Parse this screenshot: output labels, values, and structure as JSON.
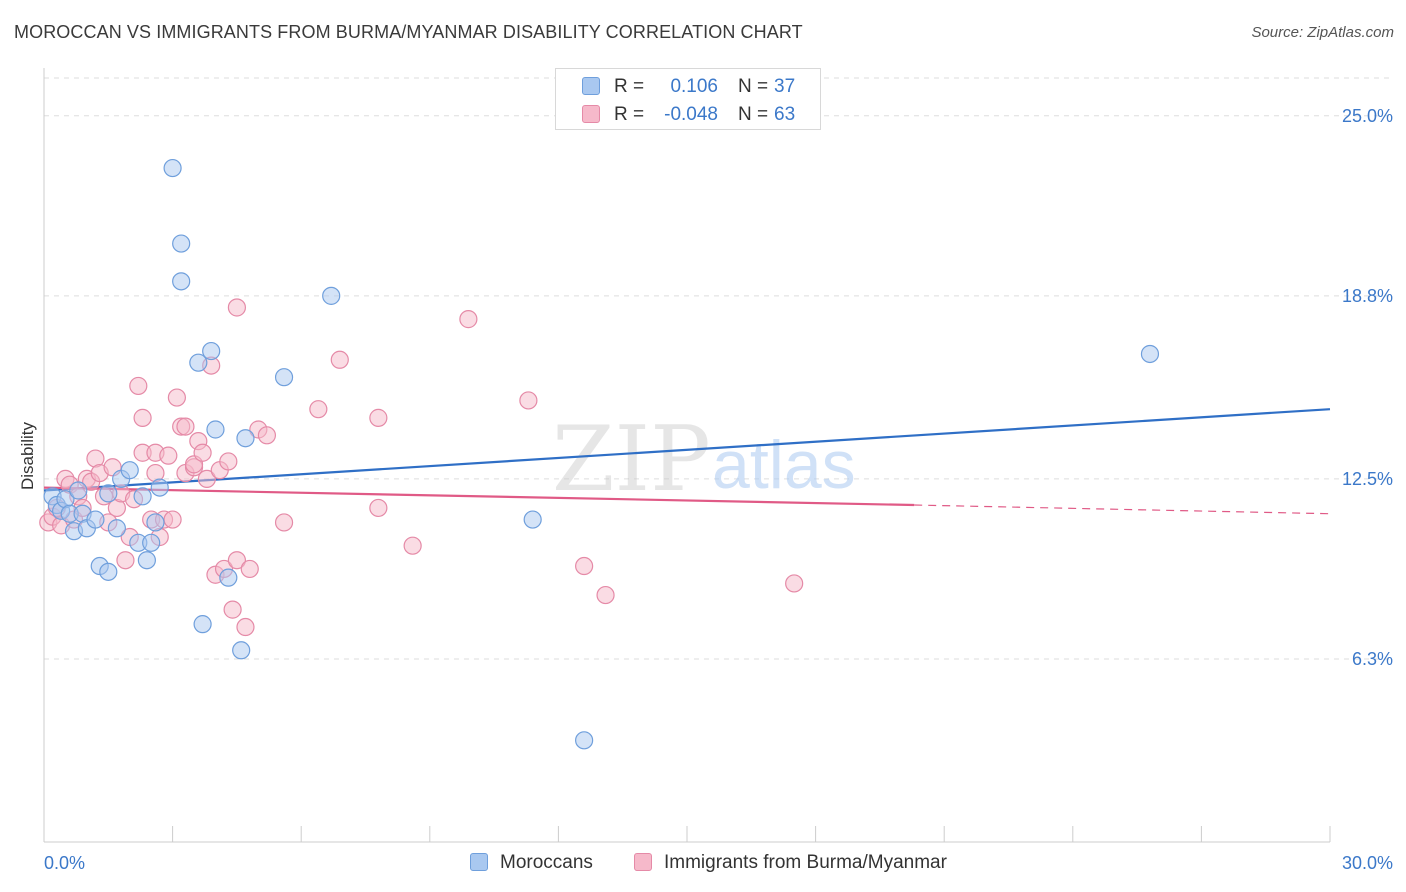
{
  "title": "MOROCCAN VS IMMIGRANTS FROM BURMA/MYANMAR DISABILITY CORRELATION CHART",
  "source": "Source: ZipAtlas.com",
  "colors": {
    "blue_fill": "#a9c8f0",
    "blue_stroke": "#6f9fdc",
    "blue_line": "#2f6fc6",
    "pink_fill": "#f6b9ca",
    "pink_stroke": "#e58aa7",
    "pink_line": "#e05a86",
    "axis_text": "#3b78c9",
    "grid": "#dddddd",
    "watermark": "#c8c8c8"
  },
  "legend_top": {
    "rows": [
      {
        "series": "Moroccans",
        "r_label": "R =",
        "r_value": "0.106",
        "n_label": "N =",
        "n_value": "37"
      },
      {
        "series": "Immigrants from Burma/Myanmar",
        "r_label": "R =",
        "r_value": "-0.048",
        "n_label": "N =",
        "n_value": "63"
      }
    ]
  },
  "legend_bottom": [
    "Moroccans",
    "Immigrants from Burma/Myanmar"
  ],
  "watermark": {
    "zip": "ZIP",
    "atlas": "atlas"
  },
  "chart_data": {
    "type": "scatter",
    "title": "MOROCCAN VS IMMIGRANTS FROM BURMA/MYANMAR DISABILITY CORRELATION CHART",
    "xlabel": "",
    "ylabel": "Disability",
    "xlim": [
      0,
      30
    ],
    "ylim": [
      0,
      26.3
    ],
    "x_tick_labels": [
      {
        "value": 0,
        "label": "0.0%"
      },
      {
        "value": 30,
        "label": "30.0%"
      }
    ],
    "y_tick_labels": [
      {
        "value": 6.3,
        "label": "6.3%"
      },
      {
        "value": 12.5,
        "label": "12.5%"
      },
      {
        "value": 18.8,
        "label": "18.8%"
      },
      {
        "value": 25.0,
        "label": "25.0%"
      }
    ],
    "grid": true,
    "series": [
      {
        "name": "Moroccans",
        "points": [
          [
            0.2,
            11.9
          ],
          [
            0.3,
            11.6
          ],
          [
            0.4,
            11.4
          ],
          [
            0.5,
            11.8
          ],
          [
            0.6,
            11.3
          ],
          [
            0.8,
            12.1
          ],
          [
            0.7,
            10.7
          ],
          [
            0.9,
            11.3
          ],
          [
            1.0,
            10.8
          ],
          [
            1.2,
            11.1
          ],
          [
            1.5,
            12.0
          ],
          [
            1.3,
            9.5
          ],
          [
            1.5,
            9.3
          ],
          [
            1.7,
            10.8
          ],
          [
            1.8,
            12.5
          ],
          [
            2.0,
            12.8
          ],
          [
            2.2,
            10.3
          ],
          [
            2.3,
            11.9
          ],
          [
            2.4,
            9.7
          ],
          [
            2.5,
            10.3
          ],
          [
            2.6,
            11.0
          ],
          [
            2.7,
            12.2
          ],
          [
            3.0,
            23.2
          ],
          [
            3.2,
            20.6
          ],
          [
            3.2,
            19.3
          ],
          [
            3.6,
            16.5
          ],
          [
            3.7,
            7.5
          ],
          [
            3.9,
            16.9
          ],
          [
            4.0,
            14.2
          ],
          [
            4.3,
            9.1
          ],
          [
            4.6,
            6.6
          ],
          [
            4.7,
            13.9
          ],
          [
            5.6,
            16.0
          ],
          [
            6.7,
            18.8
          ],
          [
            11.4,
            11.1
          ],
          [
            12.6,
            3.5
          ],
          [
            25.8,
            16.8
          ]
        ],
        "trend": {
          "x": [
            0,
            30
          ],
          "y": [
            12.1,
            14.9
          ]
        }
      },
      {
        "name": "Immigrants from Burma/Myanmar",
        "points": [
          [
            0.1,
            11.0
          ],
          [
            0.2,
            11.2
          ],
          [
            0.3,
            11.5
          ],
          [
            0.4,
            10.9
          ],
          [
            0.5,
            12.5
          ],
          [
            0.6,
            12.3
          ],
          [
            0.7,
            11.1
          ],
          [
            0.8,
            11.9
          ],
          [
            1.0,
            12.5
          ],
          [
            1.1,
            12.4
          ],
          [
            1.2,
            13.2
          ],
          [
            1.3,
            12.7
          ],
          [
            1.4,
            11.9
          ],
          [
            1.6,
            12.9
          ],
          [
            1.7,
            11.5
          ],
          [
            1.8,
            12.0
          ],
          [
            1.9,
            9.7
          ],
          [
            2.0,
            10.5
          ],
          [
            2.1,
            11.8
          ],
          [
            2.2,
            15.7
          ],
          [
            2.3,
            13.4
          ],
          [
            2.3,
            14.6
          ],
          [
            2.5,
            11.1
          ],
          [
            2.6,
            13.4
          ],
          [
            2.6,
            12.7
          ],
          [
            2.7,
            10.5
          ],
          [
            2.8,
            11.1
          ],
          [
            2.9,
            13.3
          ],
          [
            3.1,
            15.3
          ],
          [
            3.2,
            14.3
          ],
          [
            3.3,
            14.3
          ],
          [
            3.3,
            12.7
          ],
          [
            3.5,
            12.9
          ],
          [
            3.5,
            13.0
          ],
          [
            3.6,
            13.8
          ],
          [
            3.7,
            13.4
          ],
          [
            3.8,
            12.5
          ],
          [
            3.9,
            16.4
          ],
          [
            4.0,
            9.2
          ],
          [
            4.1,
            12.8
          ],
          [
            4.2,
            9.4
          ],
          [
            4.3,
            13.1
          ],
          [
            4.4,
            8.0
          ],
          [
            4.5,
            9.7
          ],
          [
            4.5,
            18.4
          ],
          [
            4.7,
            7.4
          ],
          [
            4.8,
            9.4
          ],
          [
            5.0,
            14.2
          ],
          [
            5.2,
            14.0
          ],
          [
            6.4,
            14.9
          ],
          [
            6.9,
            16.6
          ],
          [
            7.8,
            14.6
          ],
          [
            7.8,
            11.5
          ],
          [
            8.6,
            10.2
          ],
          [
            9.9,
            18.0
          ],
          [
            11.3,
            15.2
          ],
          [
            12.6,
            9.5
          ],
          [
            13.1,
            8.5
          ],
          [
            17.5,
            8.9
          ],
          [
            5.6,
            11.0
          ],
          [
            3.0,
            11.1
          ],
          [
            1.5,
            11.0
          ],
          [
            0.9,
            11.5
          ]
        ],
        "trend": {
          "x": [
            0,
            20.3
          ],
          "y": [
            12.2,
            11.6
          ]
        },
        "trend_dashed": {
          "x": [
            20.3,
            30
          ],
          "y": [
            11.6,
            11.3
          ]
        }
      }
    ]
  }
}
